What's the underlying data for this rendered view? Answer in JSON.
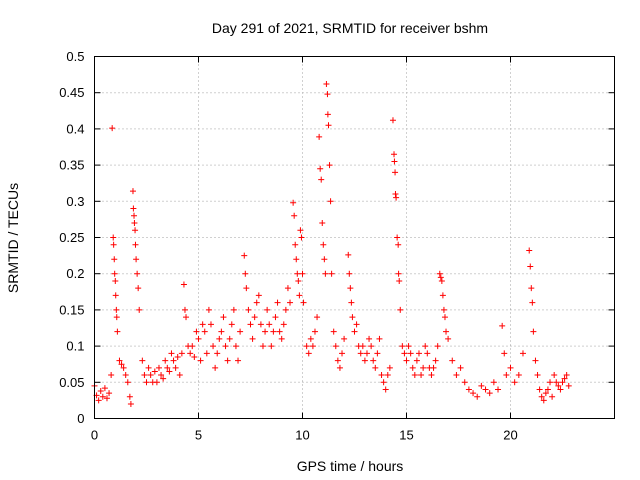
{
  "chart_data": {
    "type": "scatter",
    "title": "Day 291 of 2021, SRMTID for receiver bshm",
    "xlabel": "GPS time / hours",
    "ylabel": "SRMTID / TECUs",
    "xlim": [
      0,
      25
    ],
    "ylim": [
      0,
      0.5
    ],
    "xticks": [
      0,
      5,
      10,
      15,
      20
    ],
    "xtick_labels": [
      "0",
      "5",
      "10",
      "15",
      "20"
    ],
    "yticks": [
      0,
      0.05,
      0.1,
      0.15,
      0.2,
      0.25,
      0.3,
      0.35,
      0.4,
      0.45,
      0.5
    ],
    "ytick_labels": [
      "0",
      "0.05",
      "0.1",
      "0.15",
      "0.2",
      "0.25",
      "0.3",
      "0.35",
      "0.4",
      "0.45",
      "0.5"
    ],
    "grid": true,
    "marker": "+",
    "series": [
      {
        "name": "bshm",
        "color": "#ff0000",
        "points": [
          [
            0.0,
            0.045
          ],
          [
            0.1,
            0.032
          ],
          [
            0.2,
            0.025
          ],
          [
            0.3,
            0.038
          ],
          [
            0.4,
            0.03
          ],
          [
            0.5,
            0.042
          ],
          [
            0.6,
            0.028
          ],
          [
            0.7,
            0.035
          ],
          [
            0.8,
            0.06
          ],
          [
            0.85,
            0.401
          ],
          [
            0.9,
            0.25
          ],
          [
            0.92,
            0.24
          ],
          [
            0.95,
            0.22
          ],
          [
            0.97,
            0.2
          ],
          [
            1.0,
            0.19
          ],
          [
            1.02,
            0.17
          ],
          [
            1.05,
            0.15
          ],
          [
            1.07,
            0.14
          ],
          [
            1.1,
            0.12
          ],
          [
            1.2,
            0.08
          ],
          [
            1.3,
            0.075
          ],
          [
            1.4,
            0.07
          ],
          [
            1.5,
            0.06
          ],
          [
            1.6,
            0.05
          ],
          [
            1.7,
            0.03
          ],
          [
            1.75,
            0.02
          ],
          [
            1.85,
            0.314
          ],
          [
            1.87,
            0.29
          ],
          [
            1.9,
            0.28
          ],
          [
            1.92,
            0.27
          ],
          [
            1.95,
            0.26
          ],
          [
            1.97,
            0.24
          ],
          [
            2.0,
            0.22
          ],
          [
            2.05,
            0.2
          ],
          [
            2.1,
            0.18
          ],
          [
            2.15,
            0.15
          ],
          [
            2.3,
            0.08
          ],
          [
            2.4,
            0.06
          ],
          [
            2.5,
            0.05
          ],
          [
            2.6,
            0.07
          ],
          [
            2.7,
            0.06
          ],
          [
            2.8,
            0.05
          ],
          [
            2.9,
            0.065
          ],
          [
            3.0,
            0.05
          ],
          [
            3.1,
            0.07
          ],
          [
            3.2,
            0.06
          ],
          [
            3.3,
            0.055
          ],
          [
            3.4,
            0.08
          ],
          [
            3.5,
            0.07
          ],
          [
            3.6,
            0.065
          ],
          [
            3.7,
            0.09
          ],
          [
            3.8,
            0.08
          ],
          [
            3.9,
            0.07
          ],
          [
            4.0,
            0.085
          ],
          [
            4.1,
            0.06
          ],
          [
            4.2,
            0.09
          ],
          [
            4.3,
            0.185
          ],
          [
            4.35,
            0.15
          ],
          [
            4.4,
            0.14
          ],
          [
            4.5,
            0.1
          ],
          [
            4.6,
            0.09
          ],
          [
            4.7,
            0.1
          ],
          [
            4.8,
            0.085
          ],
          [
            4.9,
            0.12
          ],
          [
            5.0,
            0.11
          ],
          [
            5.1,
            0.08
          ],
          [
            5.2,
            0.13
          ],
          [
            5.3,
            0.12
          ],
          [
            5.4,
            0.09
          ],
          [
            5.5,
            0.15
          ],
          [
            5.6,
            0.13
          ],
          [
            5.7,
            0.1
          ],
          [
            5.8,
            0.07
          ],
          [
            5.9,
            0.09
          ],
          [
            6.0,
            0.11
          ],
          [
            6.1,
            0.12
          ],
          [
            6.2,
            0.14
          ],
          [
            6.3,
            0.1
          ],
          [
            6.4,
            0.08
          ],
          [
            6.5,
            0.11
          ],
          [
            6.6,
            0.13
          ],
          [
            6.7,
            0.15
          ],
          [
            6.8,
            0.1
          ],
          [
            6.9,
            0.08
          ],
          [
            7.0,
            0.12
          ],
          [
            7.2,
            0.225
          ],
          [
            7.25,
            0.2
          ],
          [
            7.3,
            0.18
          ],
          [
            7.4,
            0.15
          ],
          [
            7.5,
            0.13
          ],
          [
            7.6,
            0.11
          ],
          [
            7.7,
            0.14
          ],
          [
            7.8,
            0.16
          ],
          [
            7.9,
            0.17
          ],
          [
            8.0,
            0.13
          ],
          [
            8.1,
            0.1
          ],
          [
            8.2,
            0.12
          ],
          [
            8.3,
            0.15
          ],
          [
            8.4,
            0.13
          ],
          [
            8.5,
            0.1
          ],
          [
            8.6,
            0.12
          ],
          [
            8.7,
            0.14
          ],
          [
            8.8,
            0.16
          ],
          [
            8.9,
            0.12
          ],
          [
            9.0,
            0.11
          ],
          [
            9.1,
            0.13
          ],
          [
            9.2,
            0.15
          ],
          [
            9.3,
            0.18
          ],
          [
            9.4,
            0.16
          ],
          [
            9.55,
            0.298
          ],
          [
            9.6,
            0.28
          ],
          [
            9.65,
            0.24
          ],
          [
            9.7,
            0.22
          ],
          [
            9.75,
            0.2
          ],
          [
            9.8,
            0.19
          ],
          [
            9.85,
            0.17
          ],
          [
            9.9,
            0.26
          ],
          [
            9.95,
            0.25
          ],
          [
            10.0,
            0.2
          ],
          [
            10.05,
            0.16
          ],
          [
            10.2,
            0.1
          ],
          [
            10.3,
            0.09
          ],
          [
            10.4,
            0.11
          ],
          [
            10.5,
            0.1
          ],
          [
            10.6,
            0.12
          ],
          [
            10.7,
            0.14
          ],
          [
            10.8,
            0.389
          ],
          [
            10.85,
            0.345
          ],
          [
            10.9,
            0.33
          ],
          [
            10.95,
            0.27
          ],
          [
            11.0,
            0.24
          ],
          [
            11.05,
            0.22
          ],
          [
            11.1,
            0.2
          ],
          [
            11.15,
            0.462
          ],
          [
            11.2,
            0.448
          ],
          [
            11.22,
            0.42
          ],
          [
            11.25,
            0.405
          ],
          [
            11.3,
            0.35
          ],
          [
            11.35,
            0.3
          ],
          [
            11.4,
            0.2
          ],
          [
            11.5,
            0.12
          ],
          [
            11.6,
            0.1
          ],
          [
            11.7,
            0.08
          ],
          [
            11.8,
            0.07
          ],
          [
            11.9,
            0.09
          ],
          [
            12.0,
            0.11
          ],
          [
            12.2,
            0.226
          ],
          [
            12.25,
            0.2
          ],
          [
            12.3,
            0.18
          ],
          [
            12.35,
            0.16
          ],
          [
            12.4,
            0.14
          ],
          [
            12.5,
            0.12
          ],
          [
            12.6,
            0.13
          ],
          [
            12.7,
            0.1
          ],
          [
            12.8,
            0.09
          ],
          [
            12.9,
            0.1
          ],
          [
            13.0,
            0.08
          ],
          [
            13.1,
            0.09
          ],
          [
            13.2,
            0.11
          ],
          [
            13.3,
            0.1
          ],
          [
            13.4,
            0.08
          ],
          [
            13.5,
            0.07
          ],
          [
            13.6,
            0.09
          ],
          [
            13.7,
            0.11
          ],
          [
            13.8,
            0.06
          ],
          [
            13.9,
            0.05
          ],
          [
            14.0,
            0.04
          ],
          [
            14.1,
            0.06
          ],
          [
            14.2,
            0.07
          ],
          [
            14.35,
            0.412
          ],
          [
            14.4,
            0.365
          ],
          [
            14.42,
            0.355
          ],
          [
            14.45,
            0.34
          ],
          [
            14.47,
            0.31
          ],
          [
            14.5,
            0.305
          ],
          [
            14.55,
            0.25
          ],
          [
            14.6,
            0.24
          ],
          [
            14.62,
            0.2
          ],
          [
            14.65,
            0.19
          ],
          [
            14.7,
            0.15
          ],
          [
            14.8,
            0.1
          ],
          [
            14.9,
            0.09
          ],
          [
            15.0,
            0.08
          ],
          [
            15.1,
            0.1
          ],
          [
            15.2,
            0.09
          ],
          [
            15.3,
            0.07
          ],
          [
            15.4,
            0.06
          ],
          [
            15.5,
            0.08
          ],
          [
            15.6,
            0.09
          ],
          [
            15.7,
            0.06
          ],
          [
            15.8,
            0.07
          ],
          [
            15.9,
            0.1
          ],
          [
            16.0,
            0.09
          ],
          [
            16.1,
            0.07
          ],
          [
            16.2,
            0.06
          ],
          [
            16.3,
            0.07
          ],
          [
            16.4,
            0.08
          ],
          [
            16.5,
            0.1
          ],
          [
            16.6,
            0.2
          ],
          [
            16.65,
            0.195
          ],
          [
            16.7,
            0.19
          ],
          [
            16.75,
            0.17
          ],
          [
            16.8,
            0.15
          ],
          [
            16.85,
            0.14
          ],
          [
            16.9,
            0.12
          ],
          [
            17.0,
            0.11
          ],
          [
            17.2,
            0.08
          ],
          [
            17.4,
            0.06
          ],
          [
            17.6,
            0.07
          ],
          [
            17.8,
            0.05
          ],
          [
            18.0,
            0.04
          ],
          [
            18.2,
            0.035
          ],
          [
            18.4,
            0.03
          ],
          [
            18.6,
            0.045
          ],
          [
            18.8,
            0.04
          ],
          [
            19.0,
            0.035
          ],
          [
            19.2,
            0.05
          ],
          [
            19.4,
            0.04
          ],
          [
            19.6,
            0.128
          ],
          [
            19.7,
            0.09
          ],
          [
            19.8,
            0.06
          ],
          [
            20.0,
            0.07
          ],
          [
            20.2,
            0.05
          ],
          [
            20.4,
            0.06
          ],
          [
            20.6,
            0.09
          ],
          [
            20.9,
            0.232
          ],
          [
            20.95,
            0.21
          ],
          [
            21.0,
            0.18
          ],
          [
            21.05,
            0.16
          ],
          [
            21.1,
            0.12
          ],
          [
            21.2,
            0.08
          ],
          [
            21.3,
            0.06
          ],
          [
            21.4,
            0.04
          ],
          [
            21.5,
            0.03
          ],
          [
            21.6,
            0.025
          ],
          [
            21.7,
            0.035
          ],
          [
            21.8,
            0.04
          ],
          [
            21.9,
            0.05
          ],
          [
            22.0,
            0.03
          ],
          [
            22.1,
            0.06
          ],
          [
            22.2,
            0.05
          ],
          [
            22.3,
            0.045
          ],
          [
            22.4,
            0.04
          ],
          [
            22.5,
            0.05
          ],
          [
            22.6,
            0.055
          ],
          [
            22.7,
            0.06
          ],
          [
            22.8,
            0.045
          ]
        ]
      }
    ]
  }
}
